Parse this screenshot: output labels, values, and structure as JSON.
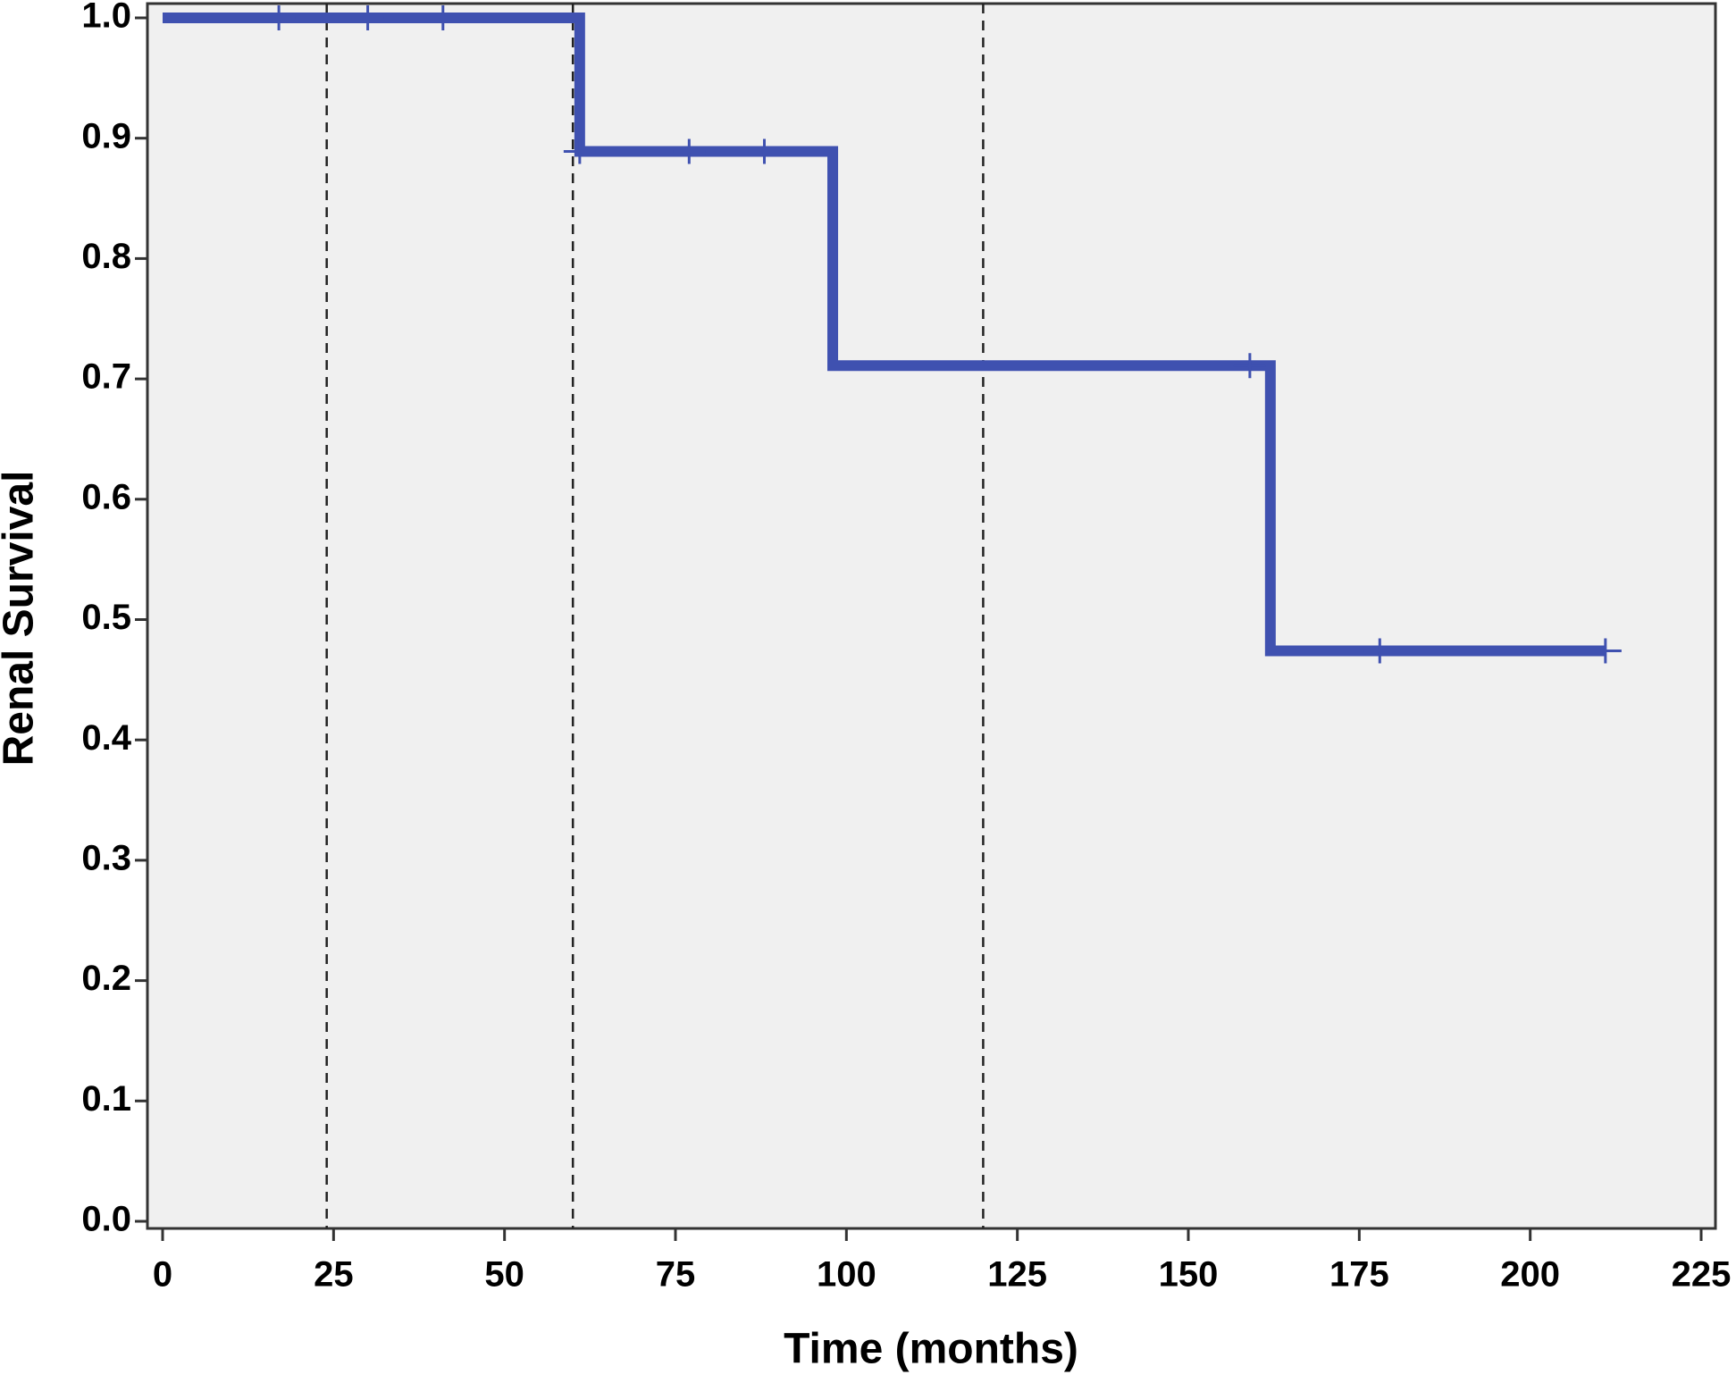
{
  "chart_data": {
    "type": "step",
    "xlabel": "Time (months)",
    "ylabel": "Renal Survival",
    "x": [
      0,
      61,
      61,
      98,
      98,
      162,
      162,
      211
    ],
    "values": [
      1.0,
      1.0,
      0.889,
      0.889,
      0.711,
      0.711,
      0.474,
      0.474
    ],
    "censored": {
      "x": [
        17,
        30,
        41,
        61,
        77,
        88,
        159,
        178,
        211
      ],
      "values": [
        1.0,
        1.0,
        1.0,
        0.889,
        0.889,
        0.889,
        0.711,
        0.474,
        0.474
      ]
    },
    "reference_lines": [
      24,
      60,
      120
    ],
    "color": "#3f51b0",
    "background": "#f0f0f0",
    "xlim": [
      0,
      225
    ],
    "xticks": [
      0,
      25,
      50,
      75,
      100,
      125,
      150,
      175,
      200,
      225
    ],
    "ylim": [
      0,
      1
    ],
    "yticks": [
      {
        "value": 0,
        "label": "0.0"
      },
      0.1,
      0.2,
      0.3,
      0.4,
      0.5,
      0.6,
      0.7,
      0.8,
      0.9,
      {
        "value": 1,
        "label": "1.0"
      }
    ]
  }
}
